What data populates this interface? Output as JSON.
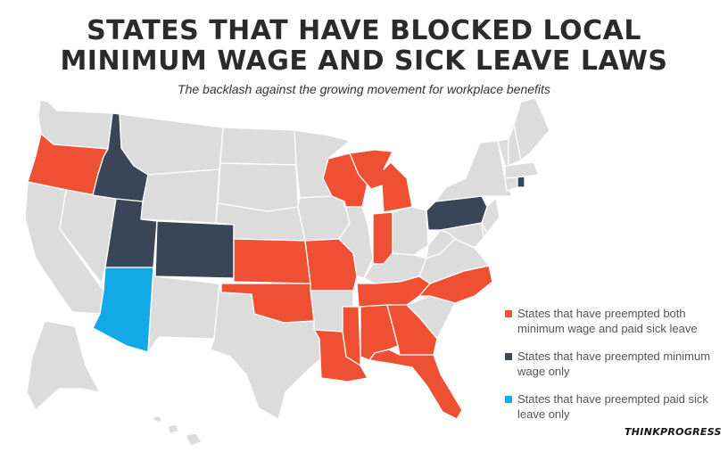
{
  "title_line1": "STATES THAT HAVE BLOCKED LOCAL",
  "title_line2": "MINIMUM WAGE AND SICK LEAVE LAWS",
  "subtitle": "The backlash against the growing movement for workplace benefits",
  "colors": {
    "both": "#ef4f32",
    "minimum_wage_only": "#3a4657",
    "sick_leave_only": "#12a9e6",
    "none": "#dcdcdc",
    "border": "#ffffff"
  },
  "legend": [
    {
      "category": "both",
      "text": "States that have preempted both minimum wage and paid sick leave"
    },
    {
      "category": "minimum_wage_only",
      "text": "States that have preempted minimum wage only"
    },
    {
      "category": "sick_leave_only",
      "text": "States that have preempted paid sick leave only"
    }
  ],
  "states_by_category": {
    "both": [
      "Oregon",
      "Wisconsin",
      "Michigan",
      "Indiana",
      "Kansas",
      "Missouri",
      "Oklahoma",
      "Tennessee",
      "North Carolina",
      "Louisiana",
      "Mississippi",
      "Alabama",
      "Georgia",
      "Florida"
    ],
    "minimum_wage_only": [
      "Idaho",
      "Utah",
      "Colorado",
      "Pennsylvania",
      "Rhode Island"
    ],
    "sick_leave_only": [
      "Arizona"
    ]
  },
  "brand": "THINKPROGRESS"
}
